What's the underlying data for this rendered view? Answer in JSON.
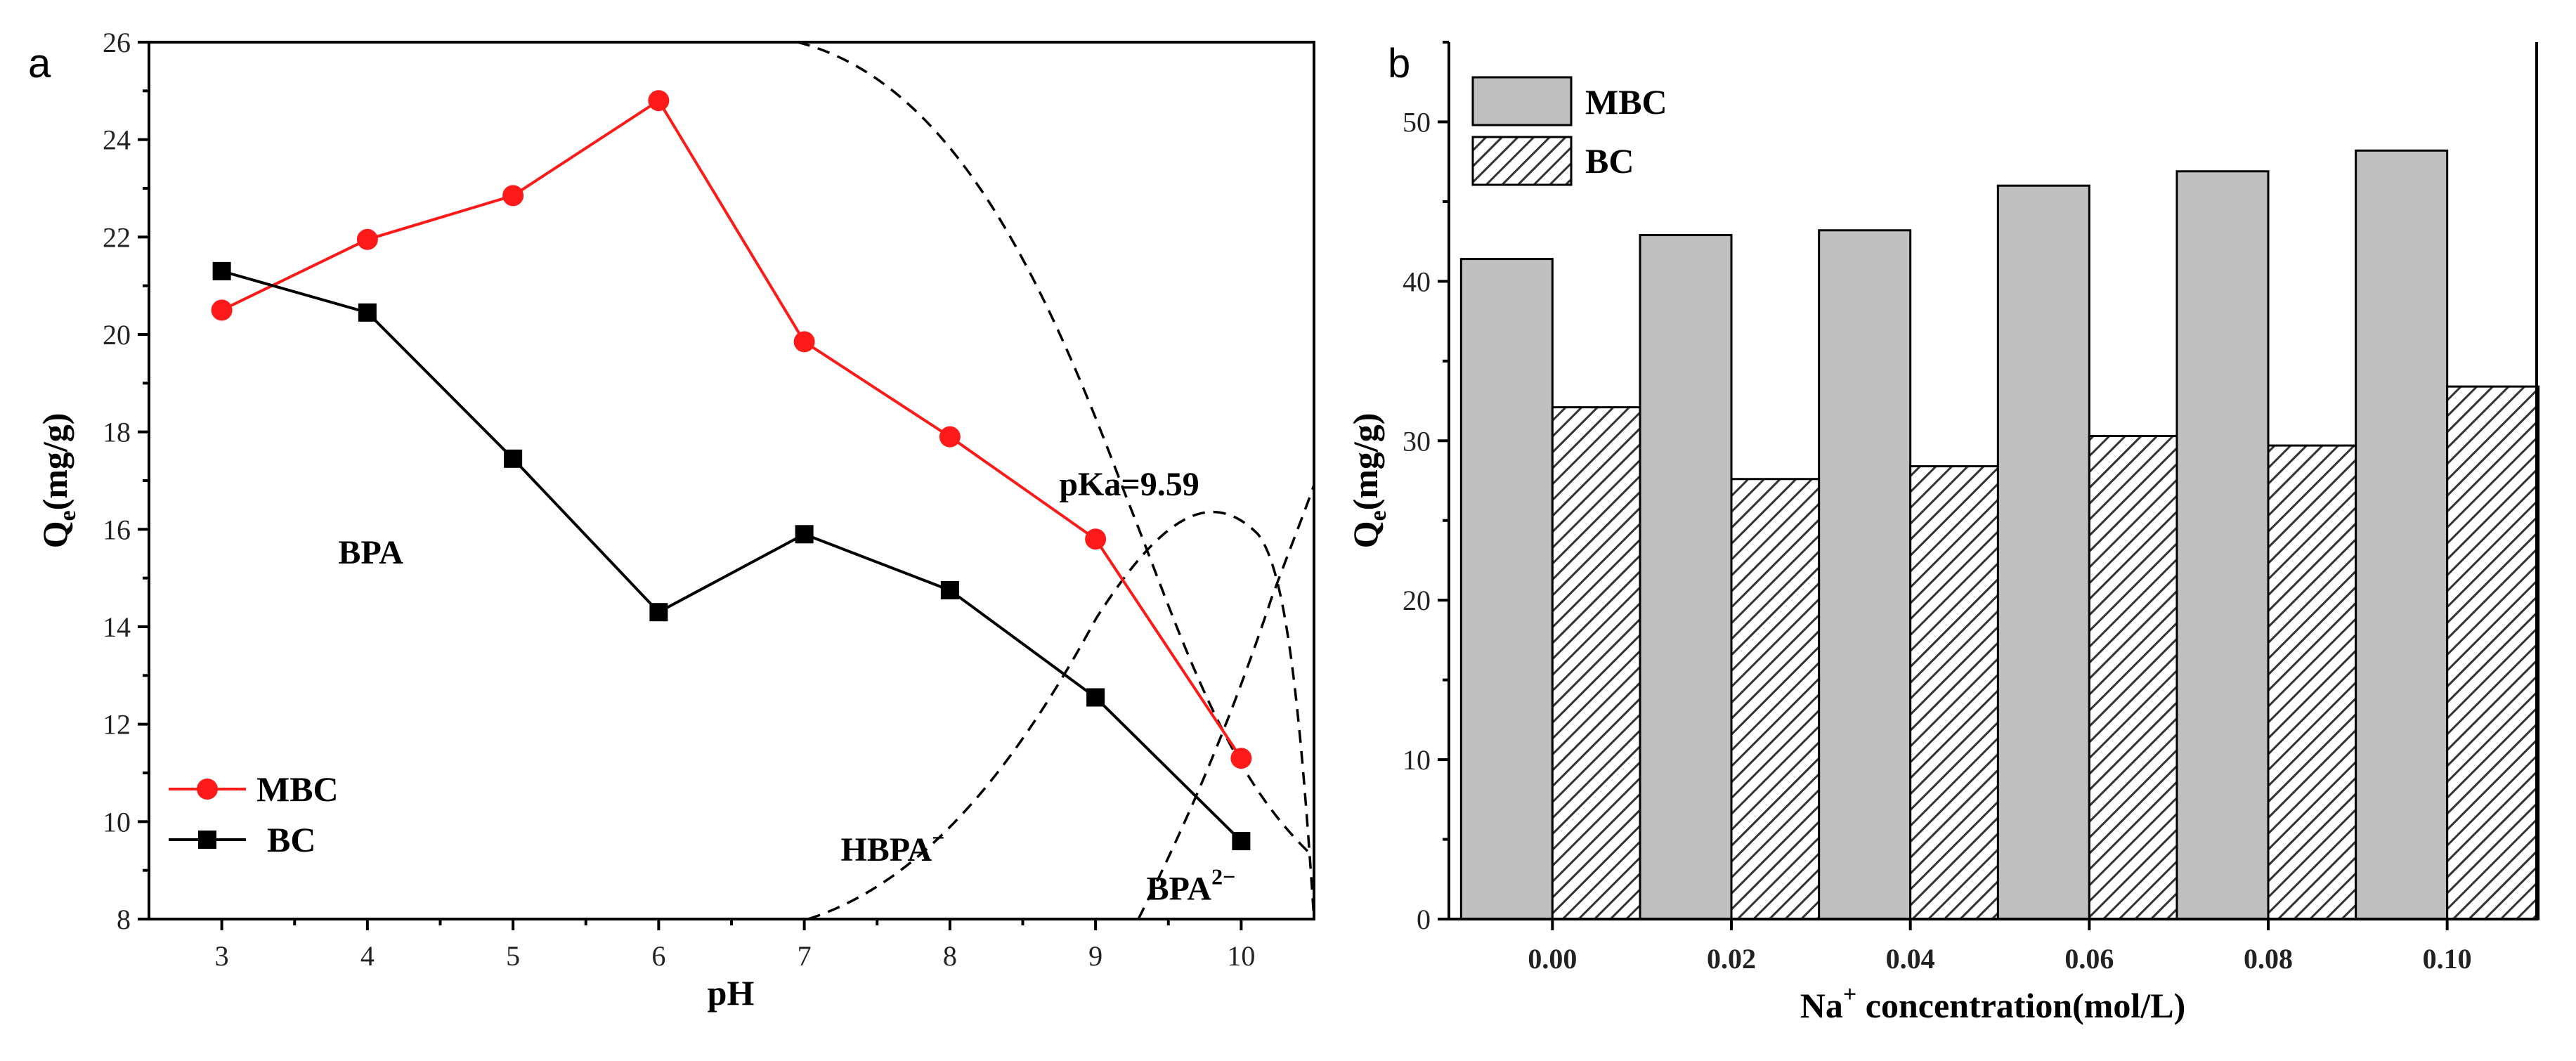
{
  "panels": {
    "a": {
      "label": "a"
    },
    "b": {
      "label": "b"
    }
  },
  "chart_data": [
    {
      "type": "line",
      "panel": "a",
      "xlabel": "pH",
      "ylabel_main": "Q",
      "ylabel_sub": "e",
      "ylabel_rest": "(mg/g)",
      "xlim": [
        2.5,
        10.5
      ],
      "ylim": [
        8,
        26
      ],
      "x_ticks": [
        "3",
        "4",
        "5",
        "6",
        "7",
        "8",
        "9",
        "10"
      ],
      "y_ticks": [
        "8",
        "10",
        "12",
        "14",
        "16",
        "18",
        "20",
        "22",
        "24",
        "26"
      ],
      "x": [
        3,
        4,
        5,
        6,
        7,
        8,
        9,
        10
      ],
      "series": [
        {
          "name": "MBC",
          "color": "#ff1a1a",
          "marker": "circle",
          "values": [
            20.5,
            21.95,
            22.85,
            24.8,
            19.85,
            17.9,
            15.8,
            11.3
          ]
        },
        {
          "name": "BC",
          "color": "#000000",
          "marker": "square",
          "values": [
            21.3,
            20.45,
            17.45,
            14.3,
            15.9,
            14.75,
            12.55,
            9.6
          ]
        }
      ],
      "annotations": [
        {
          "text": "BPA",
          "x": 3.8,
          "y": 15.3
        },
        {
          "text": "pKa=9.59",
          "x": 8.75,
          "y": 16.7
        },
        {
          "text": "HBPA",
          "sup": "−",
          "x": 7.25,
          "y": 9.2
        },
        {
          "text": "BPA",
          "sup": "2−",
          "x": 9.35,
          "y": 8.4
        }
      ],
      "legend": {
        "position": "bottom-left"
      }
    },
    {
      "type": "bar",
      "panel": "b",
      "xlabel_pre": "Na",
      "xlabel_sup": "+",
      "xlabel_post": " concentration(mol/L)",
      "ylabel_main": "Q",
      "ylabel_sub": "e",
      "ylabel_rest": "(mg/g)",
      "ylim": [
        0,
        55
      ],
      "y_ticks": [
        "0",
        "10",
        "20",
        "30",
        "40",
        "50"
      ],
      "categories": [
        "0.00",
        "0.02",
        "0.04",
        "0.06",
        "0.08",
        "0.10"
      ],
      "series": [
        {
          "name": "MBC",
          "fill": "#c0c0c0",
          "pattern": "solid",
          "values": [
            41.4,
            42.9,
            43.2,
            46.0,
            46.9,
            48.2
          ]
        },
        {
          "name": "BC",
          "fill": "#ffffff",
          "pattern": "hatch",
          "values": [
            32.1,
            27.6,
            28.4,
            30.3,
            29.7,
            33.4
          ]
        }
      ],
      "legend": {
        "position": "top-left"
      }
    }
  ]
}
